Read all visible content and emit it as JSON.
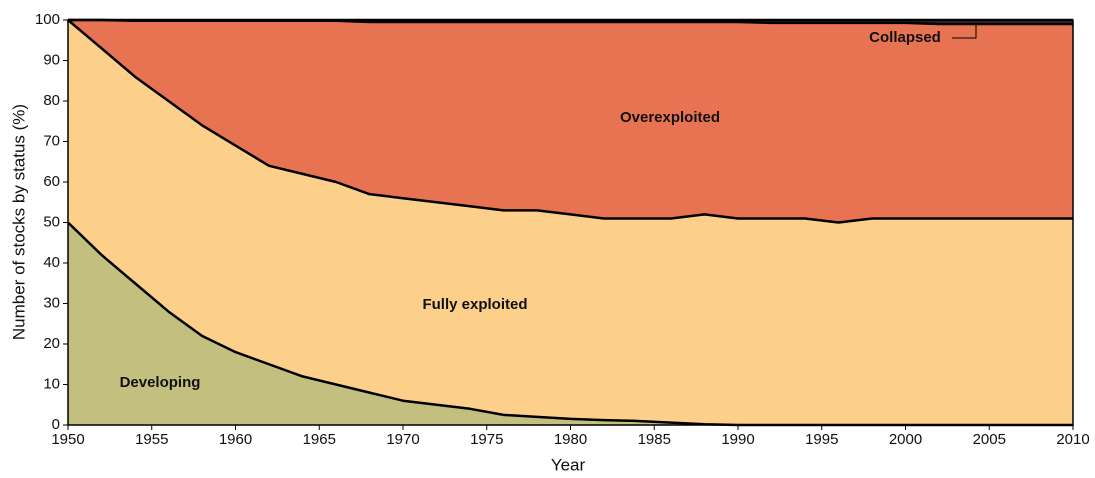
{
  "chart_data": {
    "type": "stacked-area",
    "x_label": "Year",
    "y_label": "Number of stocks by status (%)",
    "x": [
      1950,
      1952,
      1954,
      1956,
      1958,
      1960,
      1962,
      1964,
      1966,
      1968,
      1970,
      1972,
      1974,
      1976,
      1978,
      1980,
      1982,
      1984,
      1986,
      1988,
      1990,
      1992,
      1994,
      1996,
      1998,
      2000,
      2002,
      2004,
      2006,
      2008,
      2010
    ],
    "series": [
      {
        "name": "Developing",
        "color": "#c3c07f",
        "values": [
          50,
          42,
          35,
          28,
          22,
          18,
          15,
          12,
          10,
          8,
          6,
          5,
          4,
          2.5,
          2,
          1.5,
          1.2,
          1,
          0.6,
          0.2,
          0,
          0,
          0,
          0,
          0,
          0,
          0,
          0,
          0,
          0,
          0
        ]
      },
      {
        "name": "Fully exploited",
        "color": "#fccf8a",
        "values": [
          50,
          51,
          51,
          52,
          52,
          51,
          49,
          50,
          50,
          49,
          50,
          50,
          50,
          50.5,
          51,
          50.5,
          49.8,
          50,
          50.4,
          51.8,
          51,
          51,
          51,
          50,
          51,
          51,
          51,
          51,
          51,
          51,
          51
        ]
      },
      {
        "name": "Overexploited",
        "color": "#e87352",
        "values": [
          0,
          7,
          13.8,
          19.8,
          25.8,
          30.8,
          35.8,
          37.8,
          39.8,
          42.5,
          43.5,
          44.5,
          45.5,
          46.5,
          46.5,
          47.5,
          48.5,
          48.5,
          48.5,
          47.5,
          48.5,
          48.3,
          48.3,
          49.3,
          48.3,
          48.3,
          48,
          48,
          48,
          48,
          48
        ]
      },
      {
        "name": "Collapsed",
        "color": "#3b2a2a",
        "values": [
          0,
          0,
          0.2,
          0.2,
          0.2,
          0.2,
          0.2,
          0.2,
          0.2,
          0.5,
          0.5,
          0.5,
          0.5,
          0.5,
          0.5,
          0.5,
          0.5,
          0.5,
          0.5,
          0.5,
          0.5,
          0.7,
          0.7,
          0.7,
          0.7,
          0.7,
          1,
          1,
          1,
          1,
          1
        ]
      }
    ],
    "xlim": [
      1950,
      2010
    ],
    "xticks": [
      1950,
      1955,
      1960,
      1965,
      1970,
      1975,
      1980,
      1985,
      1990,
      1995,
      2000,
      2005,
      2010
    ],
    "ylim": [
      0,
      100
    ],
    "yticks": [
      0,
      10,
      20,
      30,
      40,
      50,
      60,
      70,
      80,
      90,
      100
    ]
  }
}
